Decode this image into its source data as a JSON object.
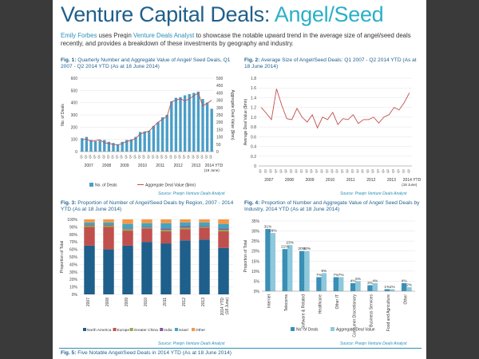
{
  "header": {
    "title_main": "Venture Capital Deals: ",
    "title_accent": "Angel/Seed"
  },
  "intro": {
    "author": "Emily Forbes",
    "uses": " uses Preqin ",
    "product": "Venture Deals Analyst",
    "rest": " to showcase the notable upward trend in the average size of angel/seed deals recently, and provides a breakdown of these investments by geography and industry."
  },
  "colors": {
    "dark_blue": "#1f5f8b",
    "teal": "#2ab0c6",
    "bar_blue": "#4a9ec7",
    "line_red": "#c0504d",
    "europe": "#c0504d",
    "greater_china": "#8faa45",
    "india": "#7b5a9e",
    "israel": "#45a4bf",
    "other": "#f79646"
  },
  "figures": {
    "fig1": {
      "num": "Fig. 1:",
      "text": " Quarterly Number and Aggregate Value of Angel/ Seed Deals, Q1 2007 - Q2 2014 YTD (As at 18 June 2014)"
    },
    "fig2": {
      "num": "Fig. 2:",
      "text": " Average Size of Angel/Seed Deals: Q1 2007 - Q2 2014 YTD (As at 18 June 2014)"
    },
    "fig3": {
      "num": "Fig. 3:",
      "text": " Proportion of Number of Angel/Seed Deals by Region, 2007 - 2014 YTD (As at 18 June 2014)"
    },
    "fig4": {
      "num": "Fig. 4:",
      "text": " Proportion of Number and Aggregate Value of Angel/ Seed Deals by Industry, 2014 YTD (As at 18 June 2014)"
    },
    "fig5": {
      "num": "Fig. 5:",
      "text": " Five Notable Angel/Seed Deals in 2014 YTD (As at 18 June 2014)"
    }
  },
  "source_text": "Source: Preqin Venture Deals Analyst",
  "chart_data": [
    {
      "type": "bar",
      "id": "fig1",
      "quarters_label": [
        "Q1",
        "Q2",
        "Q3",
        "Q4"
      ],
      "years": [
        "2007",
        "2008",
        "2009",
        "2010",
        "2011",
        "2012",
        "2013",
        "2014 YTD"
      ],
      "year_sublabel": "(18 June)",
      "ylabel": "No. of Deals",
      "y2label": "Aggregate Deal Value ($mn)",
      "ylim": [
        0,
        600
      ],
      "y2lim": [
        0,
        500
      ],
      "yticks": [
        0,
        100,
        200,
        300,
        400,
        500,
        600
      ],
      "y2ticks": [
        0,
        50,
        100,
        150,
        200,
        250,
        300,
        350,
        400,
        450,
        500
      ],
      "series": [
        {
          "name": "No. of Deals",
          "kind": "bar",
          "values": [
            110,
            120,
            95,
            85,
            90,
            95,
            80,
            70,
            60,
            80,
            95,
            100,
            120,
            160,
            165,
            170,
            210,
            240,
            280,
            300,
            410,
            440,
            445,
            460,
            470,
            480,
            490,
            430,
            400,
            350
          ]
        },
        {
          "name": "Aggregate Deal Value ($mn)",
          "kind": "line",
          "values": [
            80,
            85,
            70,
            75,
            80,
            60,
            55,
            50,
            45,
            55,
            70,
            75,
            90,
            120,
            130,
            140,
            170,
            200,
            220,
            240,
            340,
            350,
            360,
            345,
            360,
            380,
            400,
            310,
            330,
            350
          ]
        }
      ]
    },
    {
      "type": "line",
      "id": "fig2",
      "years": [
        "2007",
        "2008",
        "2009",
        "2010",
        "2011",
        "2012",
        "2013",
        "2014 YTD"
      ],
      "year_sublabel": "(18 June)",
      "ylabel": "Average Deal Value ($mn)",
      "ylim": [
        0,
        1.8
      ],
      "yticks": [
        "0",
        "0.2",
        "0.4",
        "0.6",
        "0.8",
        "1.0",
        "1.2",
        "1.4",
        "1.6",
        "1.8"
      ],
      "series": [
        {
          "name": "Average Deal Value",
          "values": [
            1.2,
            1.08,
            0.95,
            1.58,
            1.25,
            0.97,
            0.95,
            1.18,
            1.0,
            0.9,
            1.05,
            0.78,
            1.0,
            0.95,
            1.1,
            0.85,
            0.97,
            0.95,
            1.05,
            0.87,
            0.95,
            0.95,
            1.0,
            0.88,
            1.0,
            1.05,
            1.2,
            1.15,
            1.3,
            1.5
          ]
        }
      ]
    },
    {
      "type": "bar",
      "stacked": true,
      "id": "fig3",
      "categories": [
        "2007",
        "2008",
        "2009",
        "2010",
        "2011",
        "2012",
        "2013",
        "2014 YTD"
      ],
      "last_category_sublabel": "(18 June)",
      "ylabel": "Proportion of Total",
      "yticks": [
        "0%",
        "10%",
        "20%",
        "30%",
        "40%",
        "50%",
        "60%",
        "70%",
        "80%",
        "90%",
        "100%"
      ],
      "series": [
        {
          "name": "North America",
          "values": [
            65,
            60,
            65,
            70,
            68,
            72,
            73,
            62
          ]
        },
        {
          "name": "Europe",
          "values": [
            25,
            30,
            20,
            18,
            16,
            15,
            16,
            22
          ]
        },
        {
          "name": "Greater China",
          "values": [
            2,
            2,
            2,
            1,
            2,
            2,
            1,
            2
          ]
        },
        {
          "name": "India",
          "values": [
            1,
            1,
            1,
            1,
            2,
            2,
            1,
            2
          ]
        },
        {
          "name": "Israel",
          "values": [
            3,
            3,
            6,
            5,
            7,
            5,
            5,
            6
          ]
        },
        {
          "name": "Other",
          "values": [
            4,
            4,
            6,
            5,
            5,
            4,
            4,
            6
          ]
        }
      ]
    },
    {
      "type": "bar",
      "id": "fig4",
      "categories": [
        "Internet",
        "Telecoms",
        "Software & Related",
        "Healthcare",
        "Other IT",
        "Consumer Discretionary",
        "Business Services",
        "Food and Agriculture",
        "Other"
      ],
      "ylabel": "Proportion of Total",
      "ylim": [
        0,
        35
      ],
      "yticks": [
        "0%",
        "5%",
        "10%",
        "15%",
        "20%",
        "25%",
        "30%",
        "35%"
      ],
      "series": [
        {
          "name": "No. of Deals",
          "values": [
            31,
            21,
            20,
            7,
            7,
            4,
            3,
            1,
            4
          ]
        },
        {
          "name": "Aggregate Deal Value",
          "values": [
            29,
            23,
            20,
            9,
            7,
            5,
            4,
            1,
            2
          ]
        }
      ]
    }
  ]
}
